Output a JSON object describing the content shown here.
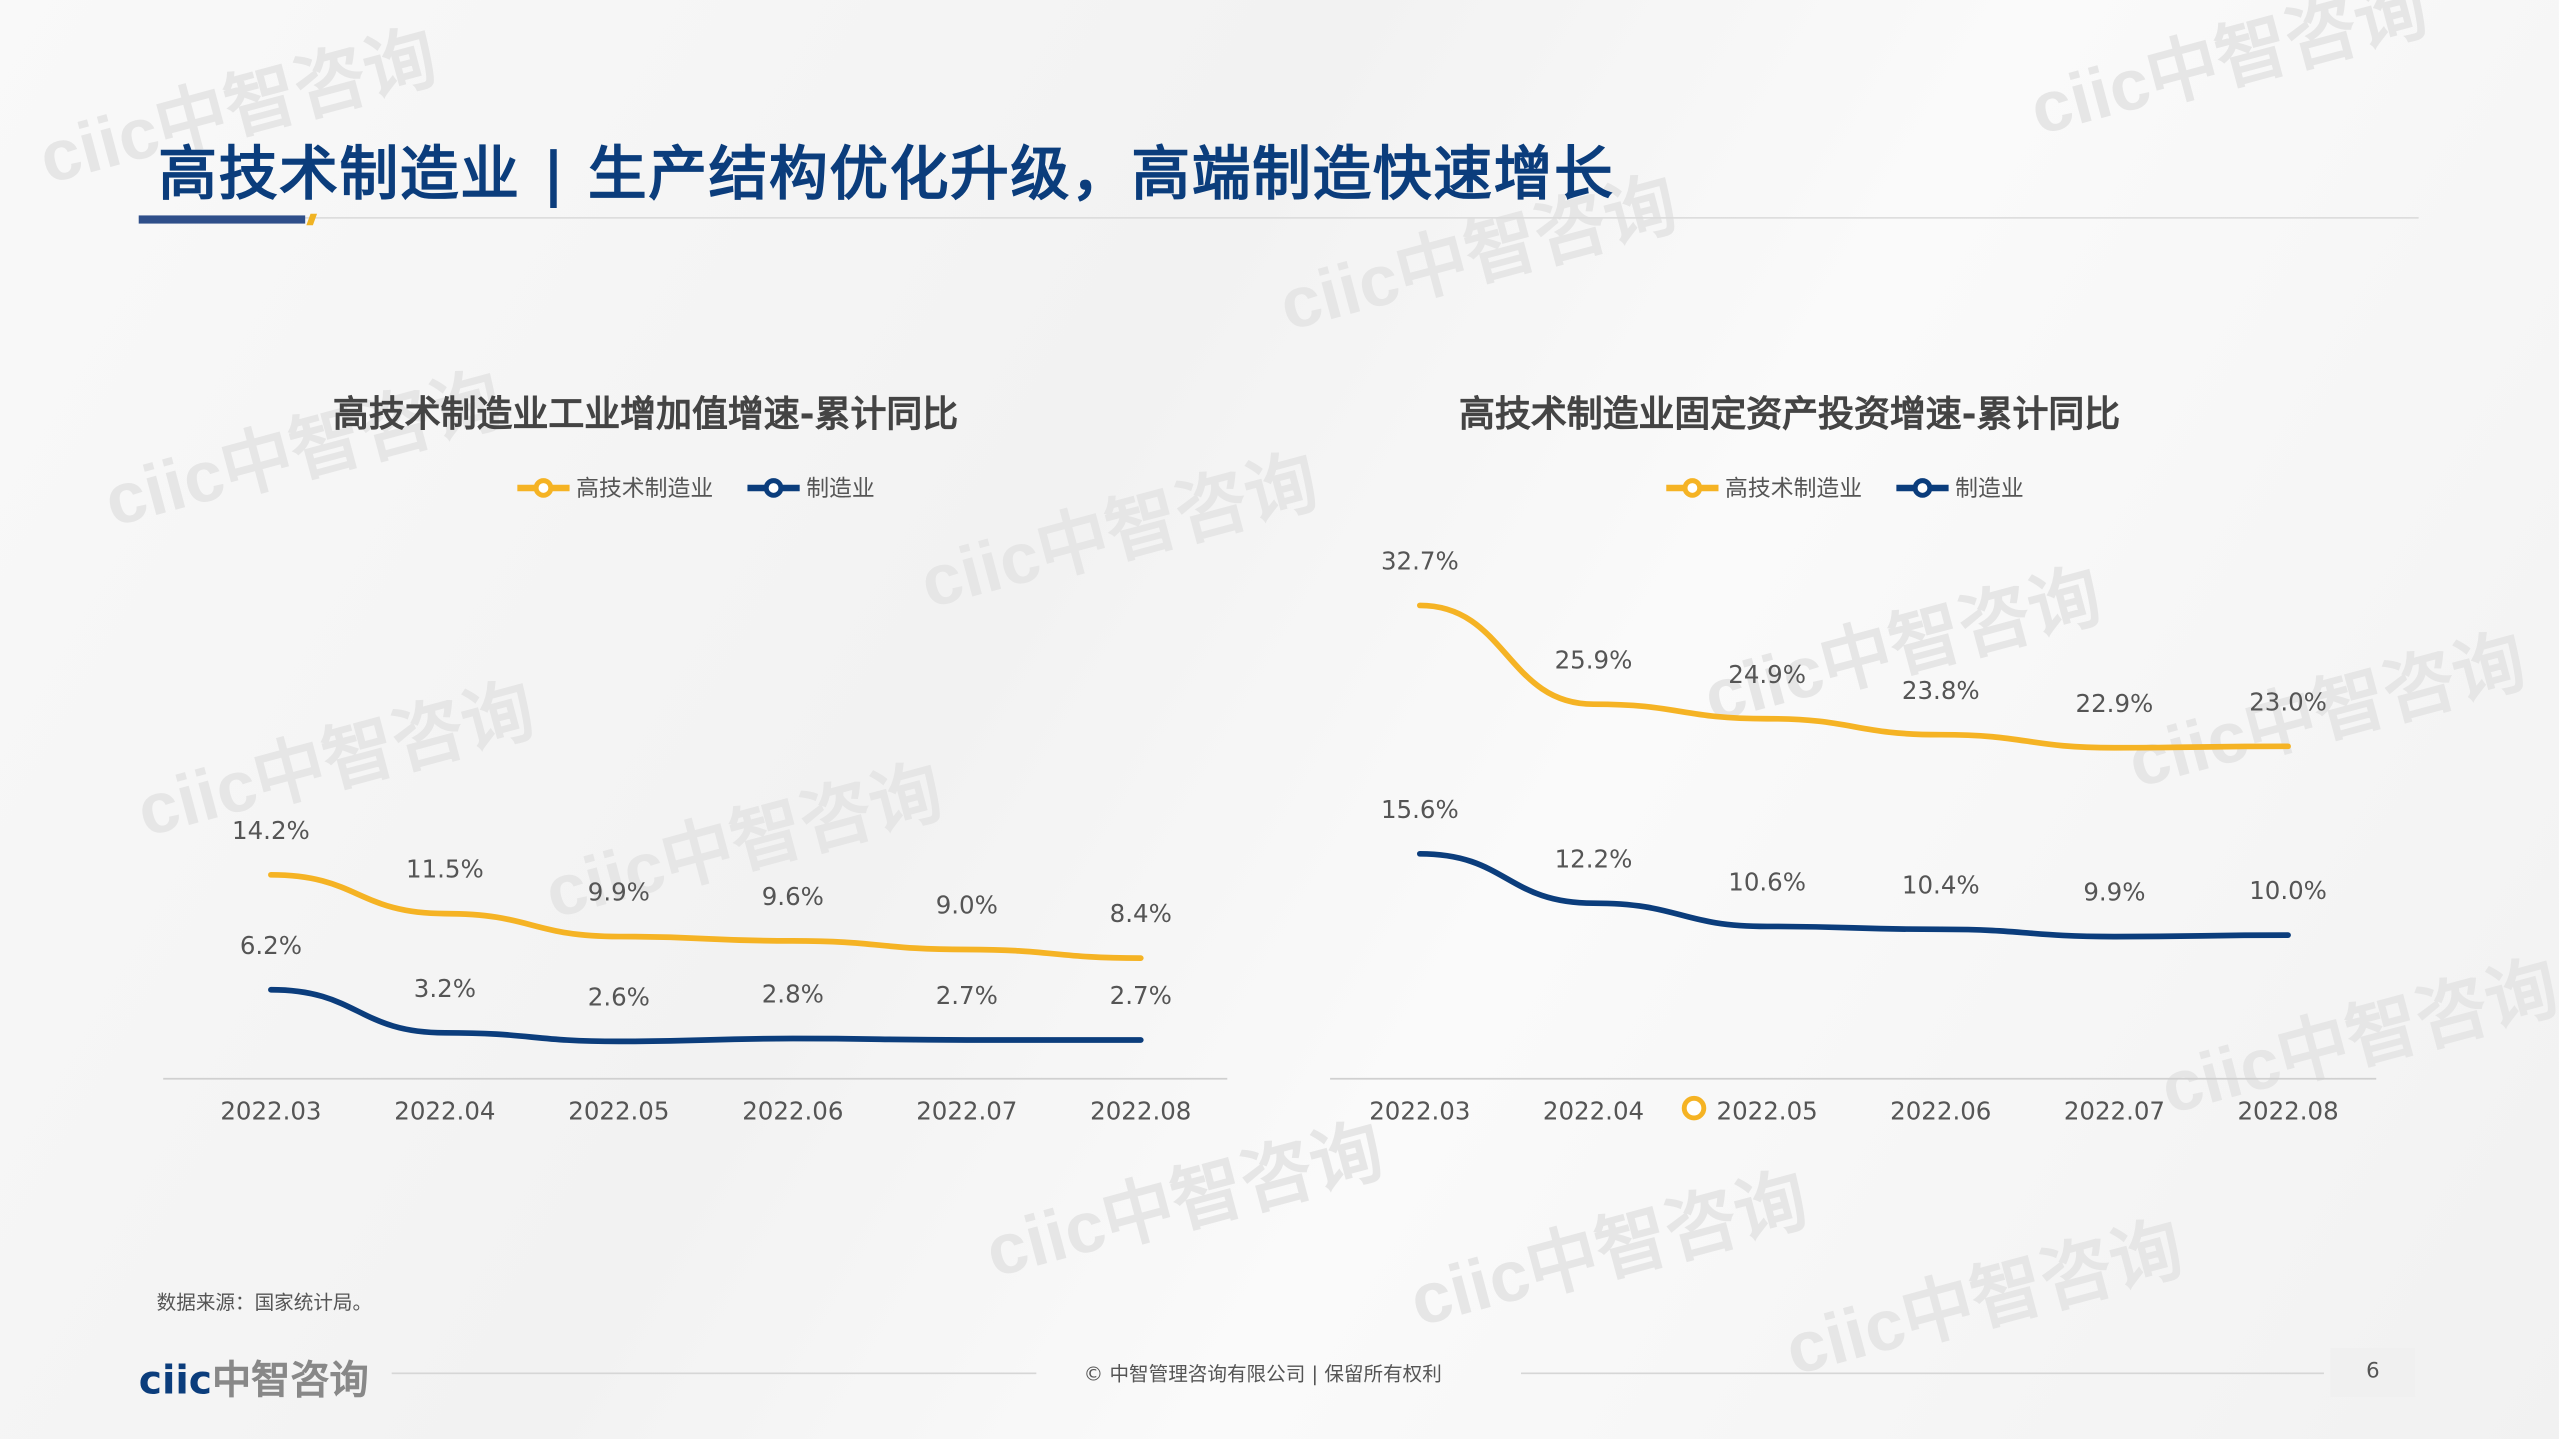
{
  "title": "高技术制造业 | 生产结构优化升级，高端制造快速增长",
  "watermark": "ciic中智咨询",
  "colors": {
    "high_tech": "#f5b324",
    "manufacturing": "#0b3d7c"
  },
  "chart_data": [
    {
      "type": "line",
      "title": "高技术制造业工业增加值增速-累计同比",
      "categories": [
        "2022.03",
        "2022.04",
        "2022.05",
        "2022.06",
        "2022.07",
        "2022.08"
      ],
      "series": [
        {
          "name": "高技术制造业",
          "values": [
            14.2,
            11.5,
            9.9,
            9.6,
            9.0,
            8.4
          ],
          "labels": [
            "14.2%",
            "11.5%",
            "9.9%",
            "9.6%",
            "9.0%",
            "8.4%"
          ]
        },
        {
          "name": "制造业",
          "values": [
            6.2,
            3.2,
            2.6,
            2.8,
            2.7,
            2.7
          ],
          "labels": [
            "6.2%",
            "3.2%",
            "2.6%",
            "2.8%",
            "2.7%",
            "2.7%"
          ]
        }
      ],
      "legend": "top-center",
      "grid": false
    },
    {
      "type": "line",
      "title": "高技术制造业固定资产投资增速-累计同比",
      "categories": [
        "2022.03",
        "2022.04",
        "2022.05",
        "2022.06",
        "2022.07",
        "2022.08"
      ],
      "series": [
        {
          "name": "高技术制造业",
          "values": [
            32.7,
            25.9,
            24.9,
            23.8,
            22.9,
            23.0
          ],
          "labels": [
            "32.7%",
            "25.9%",
            "24.9%",
            "23.8%",
            "22.9%",
            "23.0%"
          ]
        },
        {
          "name": "制造业",
          "values": [
            15.6,
            12.2,
            10.6,
            10.4,
            9.9,
            10.0
          ],
          "labels": [
            "15.6%",
            "12.2%",
            "10.6%",
            "10.4%",
            "9.9%",
            "10.0%"
          ]
        }
      ],
      "legend": "top-center",
      "grid": false
    }
  ],
  "footer": {
    "source": "数据来源：国家统计局。",
    "logo_text": "中智咨询",
    "logo_mark": "ciic",
    "copyright": "© 中智管理咨询有限公司 | 保留所有权利",
    "page": "6"
  }
}
